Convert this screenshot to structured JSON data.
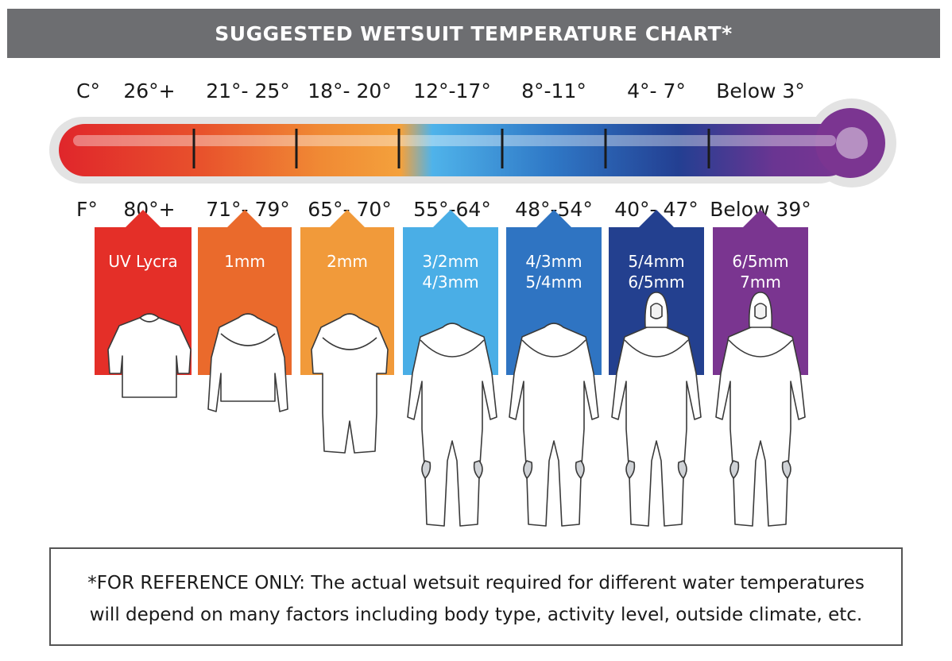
{
  "title": "SUGGESTED WETSUIT TEMPERATURE CHART*",
  "chart_data": {
    "type": "table",
    "celsius_unit": "C°",
    "fahrenheit_unit": "F°",
    "rows": [
      {
        "celsius": "26°+",
        "fahrenheit": "80°+",
        "suit": "UV Lycra",
        "suit2": "",
        "color": "#e42f28",
        "garment": "rash-vest"
      },
      {
        "celsius": "21°- 25°",
        "fahrenheit": "71°- 79°",
        "suit": "1mm",
        "suit2": "",
        "color": "#ea6a2c",
        "garment": "jacket"
      },
      {
        "celsius": "18°- 20°",
        "fahrenheit": "65°- 70°",
        "suit": "2mm",
        "suit2": "",
        "color": "#f19a3a",
        "garment": "shorty"
      },
      {
        "celsius": "12°-17°",
        "fahrenheit": "55°-64°",
        "suit": "3/2mm",
        "suit2": "4/3mm",
        "color": "#4aaee6",
        "garment": "fullsuit"
      },
      {
        "celsius": "8°-11°",
        "fahrenheit": "48°-54°",
        "suit": "4/3mm",
        "suit2": "5/4mm",
        "color": "#2f74c2",
        "garment": "fullsuit"
      },
      {
        "celsius": "4°- 7°",
        "fahrenheit": "40°- 47°",
        "suit": "5/4mm",
        "suit2": "6/5mm",
        "color": "#23408f",
        "garment": "hooded"
      },
      {
        "celsius": "Below 3°",
        "fahrenheit": "Below 39°",
        "suit": "6/5mm",
        "suit2": "7mm",
        "color": "#7a3590",
        "garment": "hooded"
      }
    ]
  },
  "footnote": {
    "line1": "*FOR REFERENCE ONLY: The actual wetsuit required for different water temperatures",
    "line2": "will depend on many factors including body type, activity level, outside climate, etc."
  }
}
